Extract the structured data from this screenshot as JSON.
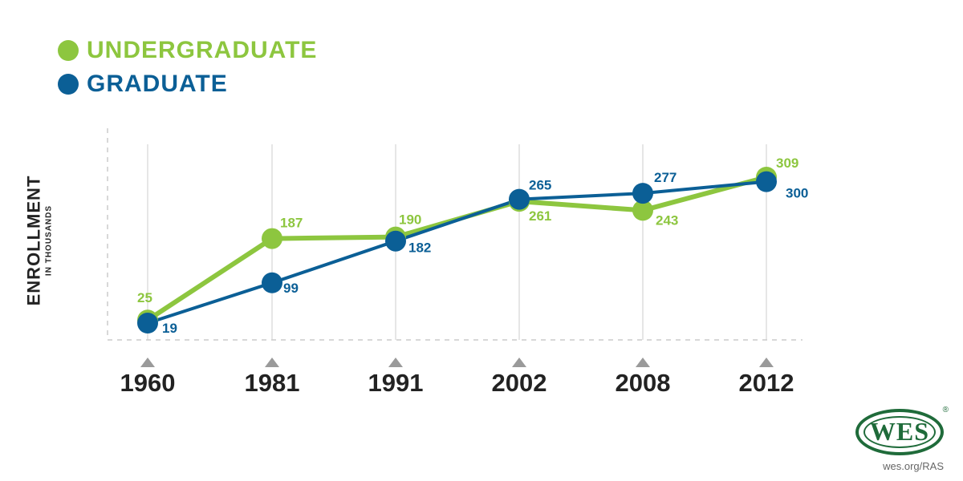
{
  "legend": {
    "undergraduate": "UNDERGRADUATE",
    "graduate": "GRADUATE"
  },
  "yaxis": {
    "title": "ENROLLMENT",
    "subtitle": "IN THOUSANDS"
  },
  "footer": {
    "logo_text": "WES",
    "logo_reg": "®",
    "url": "wes.org/RAS"
  },
  "colors": {
    "undergraduate": "#8dc63f",
    "graduate": "#0b5f96",
    "axis_text": "#222222",
    "grid": "#cccccc",
    "marker": "#9a9a9a"
  },
  "chart_data": {
    "type": "line",
    "categories": [
      "1960",
      "1981",
      "1991",
      "2002",
      "2008",
      "2012"
    ],
    "series": [
      {
        "name": "UNDERGRADUATE",
        "key": "undergraduate",
        "values": [
          25,
          187,
          190,
          261,
          243,
          309
        ],
        "labels": [
          "25",
          "187",
          "190",
          "261",
          "243",
          "309"
        ]
      },
      {
        "name": "GRADUATE",
        "key": "graduate",
        "values": [
          19,
          99,
          182,
          265,
          277,
          300
        ],
        "labels": [
          "19",
          "99",
          "182",
          "265",
          "277",
          "300"
        ]
      }
    ],
    "ylabel": "ENROLLMENT IN THOUSANDS",
    "grid": "vertical dashed",
    "legend_position": "top-left"
  }
}
